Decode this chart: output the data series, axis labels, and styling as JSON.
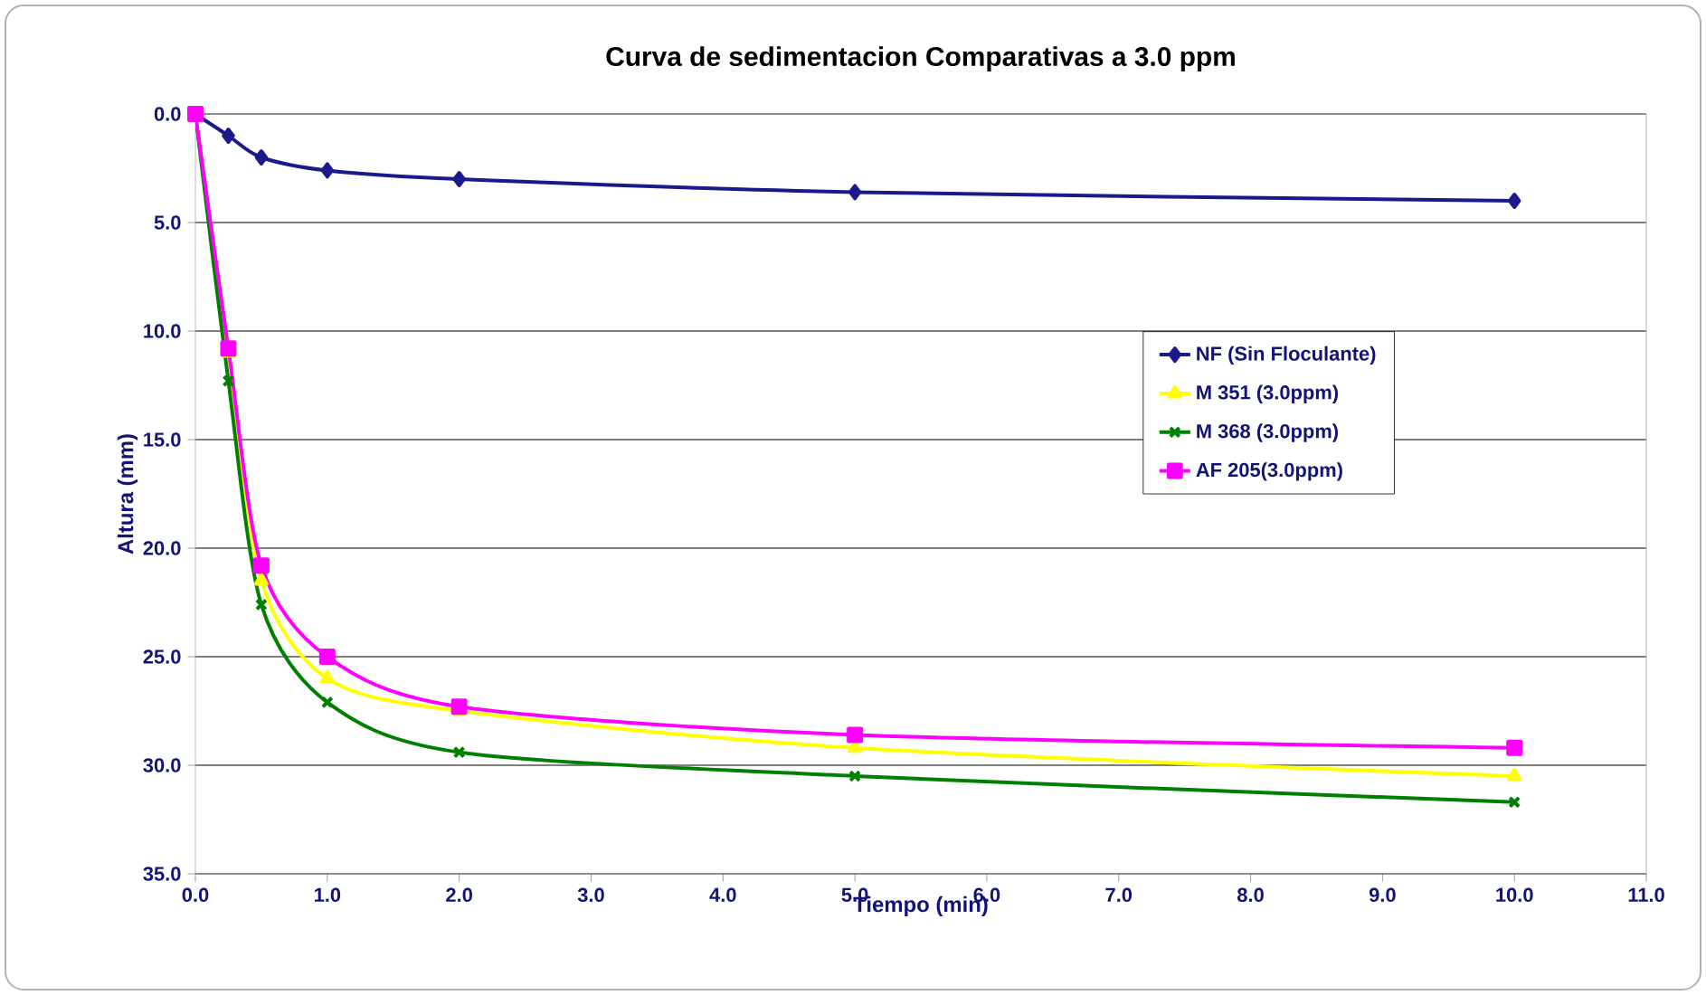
{
  "chart_data": {
    "type": "line",
    "title": "Curva de sedimentacion Comparativas a 3.0 ppm",
    "xlabel": "Tiempo (min)",
    "ylabel": "Altura (mm)",
    "x": [
      0,
      0.25,
      0.5,
      1,
      2,
      5,
      10
    ],
    "series": [
      {
        "name": "NF (Sin Floculante)",
        "color": "#1a1a8c",
        "marker": "diamond",
        "values": [
          0,
          1.0,
          2.0,
          2.6,
          3.0,
          3.6,
          4.0
        ]
      },
      {
        "name": "M 351  (3.0ppm)",
        "color": "#ffff00",
        "marker": "triangle",
        "values": [
          0,
          11.0,
          21.5,
          26.0,
          27.5,
          29.2,
          30.5
        ]
      },
      {
        "name": "M 368  (3.0ppm)",
        "color": "#008000",
        "marker": "cross",
        "values": [
          0,
          12.3,
          22.6,
          27.1,
          29.4,
          30.5,
          31.7
        ]
      },
      {
        "name": "AF 205(3.0ppm)",
        "color": "#ff00ff",
        "marker": "square",
        "values": [
          0,
          10.8,
          20.8,
          25.0,
          27.3,
          28.6,
          29.2
        ]
      }
    ],
    "xlim": [
      0,
      11
    ],
    "xticks": [
      {
        "value": 0,
        "label": "0.0"
      },
      {
        "value": 1,
        "label": "1.0"
      },
      {
        "value": 2,
        "label": "2.0"
      },
      {
        "value": 3,
        "label": "3.0"
      },
      {
        "value": 4,
        "label": "4.0"
      },
      {
        "value": 5,
        "label": "5.0"
      },
      {
        "value": 6,
        "label": "6.0"
      },
      {
        "value": 7,
        "label": "7.0"
      },
      {
        "value": 8,
        "label": "8.0"
      },
      {
        "value": 9,
        "label": "9.0"
      },
      {
        "value": 10,
        "label": "10.0"
      },
      {
        "value": 11,
        "label": "11.0"
      }
    ],
    "ylim": [
      35,
      0
    ],
    "yticks": [
      {
        "value": 0,
        "label": "0.0"
      },
      {
        "value": 5,
        "label": "5.0"
      },
      {
        "value": 10,
        "label": "10.0"
      },
      {
        "value": 15,
        "label": "15.0"
      },
      {
        "value": 20,
        "label": "20.0"
      },
      {
        "value": 25,
        "label": "25.0"
      },
      {
        "value": 30,
        "label": "30.0"
      },
      {
        "value": 35,
        "label": "35.0"
      }
    ],
    "grid": "y",
    "legend": "right",
    "line_style": "solid"
  }
}
